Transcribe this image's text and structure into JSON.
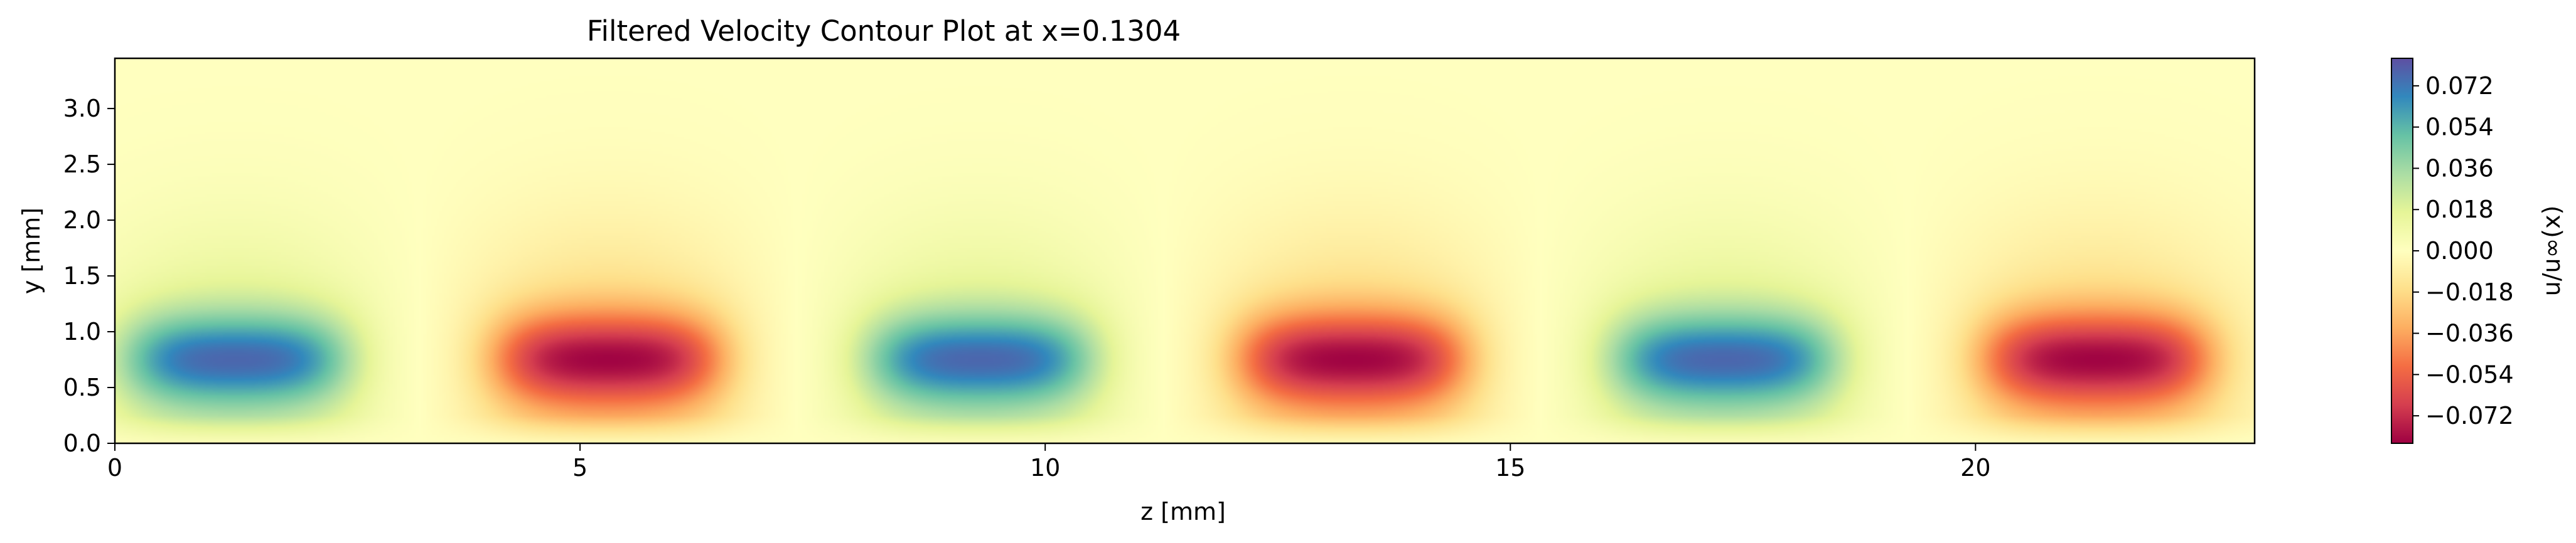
{
  "chart_data": {
    "type": "heatmap",
    "title": "Filtered Velocity Contour Plot at x=0.1304",
    "xlabel": "z [mm]",
    "ylabel": "y [mm]",
    "colorbar_label": "u/u∞(x)",
    "xlim": [
      0,
      23
    ],
    "ylim": [
      0,
      3.45
    ],
    "x_ticks": [
      0,
      5,
      10,
      15,
      20
    ],
    "x_tick_labels": [
      "0",
      "5",
      "10",
      "15",
      "20"
    ],
    "y_ticks": [
      0.0,
      0.5,
      1.0,
      1.5,
      2.0,
      2.5,
      3.0
    ],
    "y_tick_labels": [
      "0.0",
      "0.5",
      "1.0",
      "1.5",
      "2.0",
      "2.5",
      "3.0"
    ],
    "clim": [
      -0.084,
      0.084
    ],
    "colorbar_ticks": [
      0.072,
      0.054,
      0.036,
      0.018,
      0.0,
      -0.018,
      -0.036,
      -0.054,
      -0.072
    ],
    "colorbar_tick_labels": [
      "0.072",
      "0.054",
      "0.036",
      "0.018",
      "0.000",
      "−0.018",
      "−0.036",
      "−0.054",
      "−0.072"
    ],
    "colormap": "Spectral",
    "colormap_stops": [
      "#9e0142",
      "#d53e4f",
      "#f46d43",
      "#fdae61",
      "#fee08b",
      "#ffffbf",
      "#e6f598",
      "#abdda4",
      "#66c2a5",
      "#3288bd",
      "#5e4fa2"
    ],
    "grid": false,
    "structures": [
      {
        "z": 1.3,
        "y": 0.75,
        "u": 0.074
      },
      {
        "z": 5.3,
        "y": 0.75,
        "u": -0.08
      },
      {
        "z": 9.3,
        "y": 0.75,
        "u": 0.074
      },
      {
        "z": 13.3,
        "y": 0.75,
        "u": -0.08
      },
      {
        "z": 17.3,
        "y": 0.75,
        "u": 0.074
      },
      {
        "z": 21.3,
        "y": 0.75,
        "u": -0.08
      }
    ]
  }
}
